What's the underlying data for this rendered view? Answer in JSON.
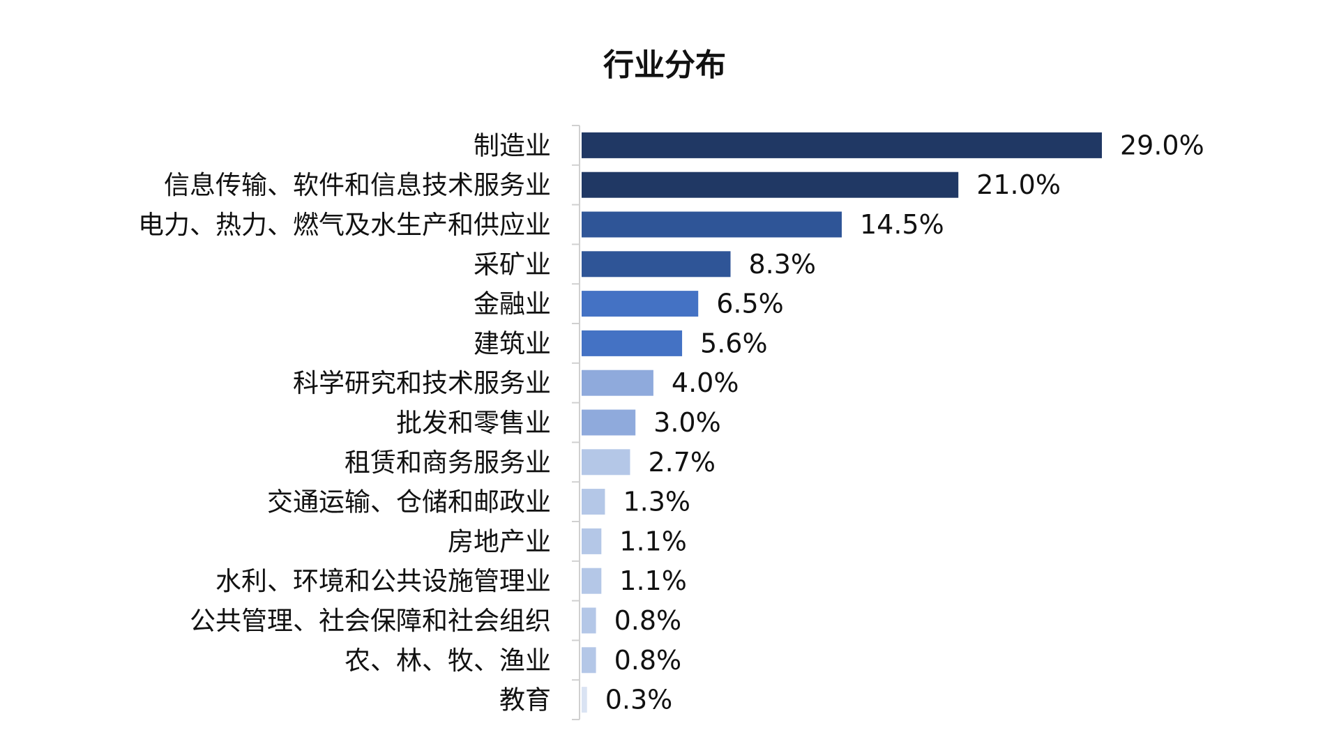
{
  "chart_data": {
    "type": "bar",
    "orientation": "horizontal",
    "title": "行业分布",
    "xlabel": "",
    "ylabel": "",
    "xlim": [
      0,
      29
    ],
    "grid": false,
    "legend": "none",
    "categories": [
      "制造业",
      "信息传输、软件和信息技术服务业",
      "电力、热力、燃气及水生产和供应业",
      "采矿业",
      "金融业",
      "建筑业",
      "科学研究和技术服务业",
      "批发和零售业",
      "租赁和商务服务业",
      "交通运输、仓储和邮政业",
      "房地产业",
      "水利、环境和公共设施管理业",
      "公共管理、社会保障和社会组织",
      "农、林、牧、渔业",
      "教育"
    ],
    "values": [
      29.0,
      21.0,
      14.5,
      8.3,
      6.5,
      5.6,
      4.0,
      3.0,
      2.7,
      1.3,
      1.1,
      1.1,
      0.8,
      0.8,
      0.3
    ],
    "value_labels": [
      "29.0%",
      "21.0%",
      "14.5%",
      "8.3%",
      "6.5%",
      "5.6%",
      "4.0%",
      "3.0%",
      "2.7%",
      "1.3%",
      "1.1%",
      "1.1%",
      "0.8%",
      "0.8%",
      "0.3%"
    ],
    "colors": [
      "#203864",
      "#203864",
      "#2F5597",
      "#2F5597",
      "#4472C4",
      "#4472C4",
      "#8FAADC",
      "#8FAADC",
      "#B4C7E7",
      "#B4C7E7",
      "#B4C7E7",
      "#B4C7E7",
      "#B4C7E7",
      "#B4C7E7",
      "#DAE3F3"
    ]
  }
}
